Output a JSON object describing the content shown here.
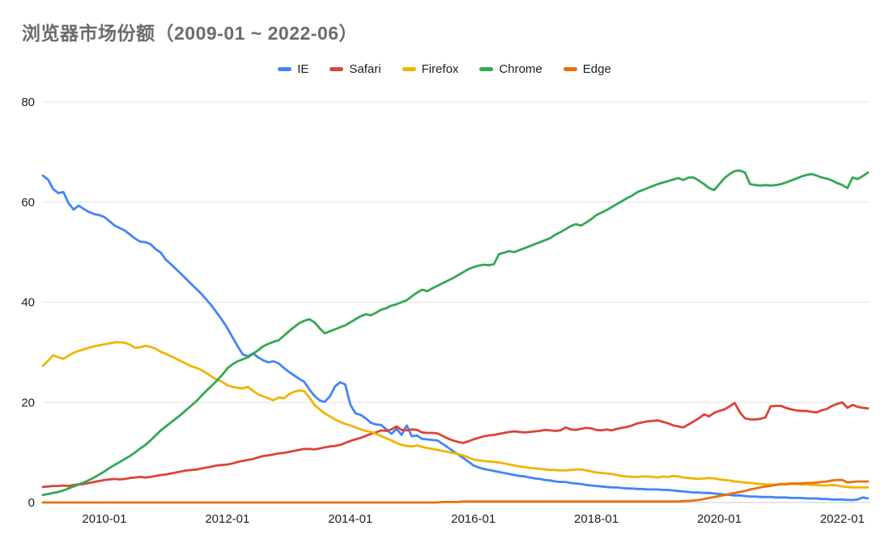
{
  "title": "浏览器市场份额（2009-01 ~ 2022-06）",
  "chart_data": {
    "type": "line",
    "title": "浏览器市场份额（2009-01 ~ 2022-06）",
    "xlabel": "",
    "ylabel": "",
    "ylim": [
      0,
      80
    ],
    "y_ticks": [
      0,
      20,
      40,
      60,
      80
    ],
    "grid": true,
    "legend_position": "top-center",
    "x_months": {
      "start": "2009-01",
      "end": "2022-06",
      "step": "1 month",
      "count": 162
    },
    "x_ticks": [
      {
        "label": "2010-01",
        "month_index": 12
      },
      {
        "label": "2012-01",
        "month_index": 36
      },
      {
        "label": "2014-01",
        "month_index": 60
      },
      {
        "label": "2016-01",
        "month_index": 84
      },
      {
        "label": "2018-01",
        "month_index": 108
      },
      {
        "label": "2020-01",
        "month_index": 132
      },
      {
        "label": "2022-01",
        "month_index": 156
      }
    ],
    "series": [
      {
        "name": "IE",
        "color": "#4285F4",
        "values": [
          65.3,
          64.5,
          62.6,
          61.8,
          62.0,
          59.8,
          58.5,
          59.3,
          58.6,
          58.0,
          57.6,
          57.4,
          57.0,
          56.2,
          55.3,
          54.8,
          54.3,
          53.5,
          52.7,
          52.1,
          52.0,
          51.6,
          50.6,
          49.9,
          48.5,
          47.6,
          46.6,
          45.6,
          44.6,
          43.6,
          42.6,
          41.6,
          40.4,
          39.2,
          37.8,
          36.4,
          34.8,
          33.0,
          31.2,
          29.6,
          29.2,
          29.8,
          29.0,
          28.4,
          28.0,
          28.2,
          27.8,
          26.9,
          26.1,
          25.4,
          24.7,
          24.1,
          22.6,
          21.3,
          20.4,
          20.1,
          21.2,
          23.2,
          24.0,
          23.6,
          19.5,
          17.8,
          17.5,
          16.8,
          15.9,
          15.6,
          15.5,
          14.6,
          13.7,
          14.7,
          13.5,
          15.4,
          13.2,
          13.4,
          12.7,
          12.6,
          12.5,
          12.4,
          11.7,
          11.0,
          10.3,
          9.6,
          8.9,
          8.2,
          7.4,
          7.0,
          6.7,
          6.5,
          6.3,
          6.1,
          5.9,
          5.7,
          5.5,
          5.3,
          5.2,
          5.0,
          4.8,
          4.7,
          4.5,
          4.4,
          4.2,
          4.1,
          4.1,
          3.9,
          3.8,
          3.7,
          3.5,
          3.4,
          3.3,
          3.2,
          3.1,
          3.0,
          3.0,
          2.9,
          2.8,
          2.8,
          2.7,
          2.7,
          2.6,
          2.6,
          2.6,
          2.5,
          2.5,
          2.4,
          2.3,
          2.2,
          2.1,
          2.0,
          2.0,
          1.9,
          1.9,
          1.8,
          1.7,
          1.6,
          1.5,
          1.4,
          1.4,
          1.3,
          1.2,
          1.2,
          1.1,
          1.1,
          1.1,
          1.0,
          1.0,
          1.0,
          0.9,
          0.9,
          0.9,
          0.8,
          0.8,
          0.8,
          0.7,
          0.7,
          0.6,
          0.6,
          0.6,
          0.5,
          0.5,
          0.6,
          1.0,
          0.8
        ]
      },
      {
        "name": "Safari",
        "color": "#DB4437",
        "values": [
          3.1,
          3.2,
          3.3,
          3.3,
          3.4,
          3.3,
          3.5,
          3.6,
          3.7,
          3.9,
          4.1,
          4.3,
          4.5,
          4.6,
          4.7,
          4.6,
          4.7,
          4.9,
          5.0,
          5.1,
          5.0,
          5.1,
          5.3,
          5.5,
          5.6,
          5.8,
          6.0,
          6.2,
          6.4,
          6.5,
          6.6,
          6.8,
          7.0,
          7.2,
          7.4,
          7.5,
          7.6,
          7.8,
          8.1,
          8.3,
          8.5,
          8.7,
          9.0,
          9.3,
          9.4,
          9.6,
          9.8,
          9.9,
          10.1,
          10.3,
          10.5,
          10.7,
          10.7,
          10.6,
          10.8,
          11.0,
          11.2,
          11.3,
          11.5,
          11.9,
          12.3,
          12.6,
          12.9,
          13.3,
          13.7,
          14.0,
          14.4,
          14.3,
          14.6,
          15.2,
          14.5,
          14.4,
          14.6,
          14.5,
          14.0,
          13.9,
          13.9,
          13.8,
          13.3,
          12.8,
          12.4,
          12.1,
          11.9,
          12.2,
          12.6,
          12.9,
          13.2,
          13.4,
          13.5,
          13.7,
          13.9,
          14.1,
          14.2,
          14.1,
          14.0,
          14.1,
          14.2,
          14.3,
          14.5,
          14.4,
          14.3,
          14.4,
          15.0,
          14.6,
          14.5,
          14.7,
          14.9,
          14.8,
          14.5,
          14.4,
          14.6,
          14.4,
          14.7,
          14.9,
          15.1,
          15.4,
          15.8,
          16.0,
          16.2,
          16.3,
          16.4,
          16.1,
          15.8,
          15.4,
          15.2,
          15.0,
          15.6,
          16.2,
          16.8,
          17.6,
          17.2,
          17.9,
          18.3,
          18.6,
          19.2,
          19.9,
          18.0,
          16.8,
          16.6,
          16.6,
          16.7,
          17.0,
          19.2,
          19.3,
          19.3,
          18.9,
          18.6,
          18.4,
          18.3,
          18.3,
          18.1,
          18.0,
          18.4,
          18.7,
          19.3,
          19.7,
          20.0,
          18.9,
          19.5,
          19.1,
          18.9,
          18.8
        ]
      },
      {
        "name": "Firefox",
        "color": "#F0B400",
        "values": [
          27.3,
          28.3,
          29.4,
          29.0,
          28.7,
          29.3,
          29.9,
          30.3,
          30.6,
          30.9,
          31.2,
          31.4,
          31.6,
          31.8,
          32.0,
          32.0,
          31.9,
          31.5,
          30.9,
          31.0,
          31.3,
          31.1,
          30.7,
          30.1,
          29.7,
          29.2,
          28.7,
          28.2,
          27.7,
          27.2,
          26.9,
          26.4,
          25.8,
          25.1,
          24.5,
          24.1,
          23.4,
          23.1,
          22.9,
          22.8,
          23.1,
          22.3,
          21.6,
          21.2,
          20.8,
          20.4,
          21.0,
          20.8,
          21.6,
          22.1,
          22.4,
          22.2,
          21.0,
          19.5,
          18.6,
          17.8,
          17.2,
          16.6,
          16.1,
          15.7,
          15.4,
          15.0,
          14.6,
          14.3,
          14.1,
          13.7,
          13.3,
          12.8,
          12.4,
          11.9,
          11.5,
          11.3,
          11.2,
          11.4,
          11.1,
          10.9,
          10.7,
          10.5,
          10.3,
          10.1,
          9.9,
          9.7,
          9.4,
          9.0,
          8.6,
          8.4,
          8.3,
          8.2,
          8.1,
          8.0,
          7.8,
          7.6,
          7.4,
          7.2,
          7.1,
          6.9,
          6.8,
          6.7,
          6.6,
          6.5,
          6.5,
          6.4,
          6.4,
          6.5,
          6.6,
          6.6,
          6.4,
          6.2,
          6.0,
          5.9,
          5.8,
          5.7,
          5.5,
          5.3,
          5.2,
          5.1,
          5.1,
          5.2,
          5.2,
          5.1,
          5.0,
          5.2,
          5.1,
          5.3,
          5.2,
          5.0,
          4.9,
          4.8,
          4.7,
          4.8,
          4.9,
          4.8,
          4.6,
          4.5,
          4.4,
          4.2,
          4.1,
          4.0,
          3.9,
          3.8,
          3.7,
          3.6,
          3.6,
          3.5,
          3.6,
          3.6,
          3.7,
          3.7,
          3.6,
          3.6,
          3.5,
          3.5,
          3.4,
          3.4,
          3.5,
          3.4,
          3.2,
          3.1,
          3.0,
          3.0,
          3.0,
          3.0
        ]
      },
      {
        "name": "Chrome",
        "color": "#34A853",
        "values": [
          1.5,
          1.7,
          1.9,
          2.1,
          2.4,
          2.8,
          3.2,
          3.6,
          4.0,
          4.5,
          5.0,
          5.6,
          6.2,
          6.9,
          7.5,
          8.1,
          8.7,
          9.3,
          10.0,
          10.8,
          11.5,
          12.4,
          13.4,
          14.4,
          15.2,
          16.0,
          16.8,
          17.6,
          18.5,
          19.4,
          20.3,
          21.4,
          22.4,
          23.4,
          24.4,
          25.5,
          26.8,
          27.6,
          28.2,
          28.6,
          29.0,
          29.7,
          30.4,
          31.2,
          31.7,
          32.1,
          32.4,
          33.3,
          34.2,
          35.0,
          35.8,
          36.3,
          36.6,
          36.0,
          34.8,
          33.8,
          34.2,
          34.6,
          35.0,
          35.4,
          36.0,
          36.6,
          37.2,
          37.6,
          37.4,
          37.9,
          38.5,
          38.8,
          39.3,
          39.6,
          40.0,
          40.4,
          41.2,
          41.9,
          42.5,
          42.2,
          42.8,
          43.3,
          43.8,
          44.3,
          44.8,
          45.4,
          46.0,
          46.6,
          47.0,
          47.3,
          47.5,
          47.4,
          47.6,
          49.6,
          49.9,
          50.2,
          50.0,
          50.4,
          50.8,
          51.2,
          51.6,
          52.0,
          52.4,
          52.8,
          53.5,
          54.0,
          54.6,
          55.2,
          55.6,
          55.3,
          55.9,
          56.6,
          57.4,
          57.9,
          58.4,
          59.0,
          59.6,
          60.2,
          60.8,
          61.3,
          62.0,
          62.4,
          62.8,
          63.2,
          63.6,
          63.9,
          64.2,
          64.5,
          64.8,
          64.4,
          64.9,
          64.9,
          64.3,
          63.6,
          62.8,
          62.4,
          63.6,
          64.8,
          65.6,
          66.2,
          66.3,
          65.9,
          63.6,
          63.4,
          63.3,
          63.4,
          63.3,
          63.4,
          63.6,
          63.9,
          64.3,
          64.7,
          65.1,
          65.4,
          65.6,
          65.3,
          64.9,
          64.7,
          64.3,
          63.8,
          63.4,
          62.8,
          64.9,
          64.6,
          65.2,
          65.9
        ]
      },
      {
        "name": "Edge",
        "color": "#E8710A",
        "values": [
          0,
          0,
          0,
          0,
          0,
          0,
          0,
          0,
          0,
          0,
          0,
          0,
          0,
          0,
          0,
          0,
          0,
          0,
          0,
          0,
          0,
          0,
          0,
          0,
          0,
          0,
          0,
          0,
          0,
          0,
          0,
          0,
          0,
          0,
          0,
          0,
          0,
          0,
          0,
          0,
          0,
          0,
          0,
          0,
          0,
          0,
          0,
          0,
          0,
          0,
          0,
          0,
          0,
          0,
          0,
          0,
          0,
          0,
          0,
          0,
          0,
          0,
          0,
          0,
          0,
          0,
          0,
          0,
          0,
          0,
          0,
          0,
          0,
          0,
          0,
          0,
          0,
          0,
          0.1,
          0.1,
          0.1,
          0.1,
          0.2,
          0.2,
          0.2,
          0.2,
          0.2,
          0.2,
          0.2,
          0.2,
          0.2,
          0.2,
          0.2,
          0.2,
          0.2,
          0.2,
          0.2,
          0.2,
          0.2,
          0.2,
          0.2,
          0.2,
          0.2,
          0.2,
          0.2,
          0.2,
          0.2,
          0.2,
          0.2,
          0.2,
          0.2,
          0.2,
          0.2,
          0.2,
          0.2,
          0.2,
          0.2,
          0.2,
          0.2,
          0.2,
          0.2,
          0.2,
          0.2,
          0.2,
          0.2,
          0.3,
          0.3,
          0.4,
          0.5,
          0.7,
          0.9,
          1.1,
          1.3,
          1.5,
          1.7,
          1.9,
          2.1,
          2.3,
          2.6,
          2.8,
          3.0,
          3.2,
          3.3,
          3.5,
          3.7,
          3.7,
          3.8,
          3.8,
          3.8,
          3.9,
          3.9,
          4.0,
          4.1,
          4.2,
          4.4,
          4.5,
          4.5,
          4.0,
          4.1,
          4.2,
          4.2,
          4.2
        ]
      }
    ]
  }
}
